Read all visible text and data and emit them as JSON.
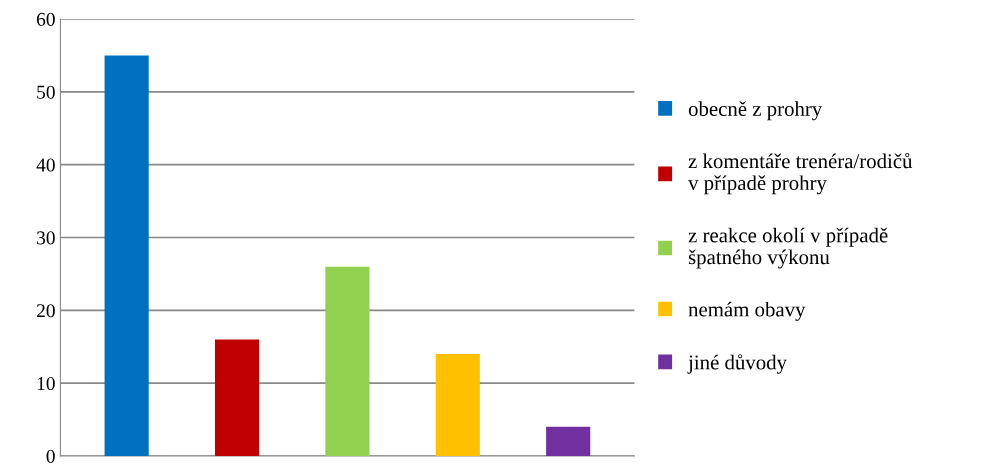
{
  "chart_data": {
    "type": "bar",
    "categories": [
      null,
      null,
      null,
      null,
      null
    ],
    "series": [
      {
        "name": "obecně z prohry",
        "color": "#0070c0",
        "values": [
          55,
          null,
          null,
          null,
          null
        ]
      },
      {
        "name": "z komentáře trenéra/rodičů\nv případě prohry",
        "color": "#c00000",
        "values": [
          null,
          16,
          null,
          null,
          null
        ]
      },
      {
        "name": "z reakce okolí v případě\nšpatného výkonu",
        "color": "#92d050",
        "values": [
          null,
          null,
          26,
          null,
          null
        ]
      },
      {
        "name": "nemám obavy",
        "color": "#ffc000",
        "values": [
          null,
          null,
          null,
          14,
          null
        ]
      },
      {
        "name": "jiné důvody",
        "color": "#7030a0",
        "values": [
          null,
          null,
          null,
          null,
          4
        ]
      }
    ],
    "ylim": [
      0,
      60
    ],
    "yticks": [
      0,
      10,
      20,
      30,
      40,
      50,
      60
    ],
    "grid": "y",
    "legend": "right"
  }
}
